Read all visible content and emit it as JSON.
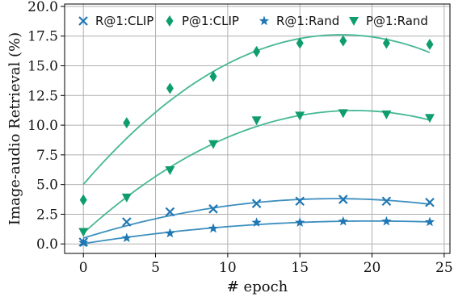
{
  "chart_data": {
    "type": "scatter",
    "xlabel": "# epoch",
    "ylabel": "Image-audio Retrieval (%)",
    "xlim": [
      -1.3,
      25.4
    ],
    "ylim": [
      -0.8,
      20.2
    ],
    "xticks": [
      0,
      5,
      10,
      15,
      20,
      25
    ],
    "xtick_labels": [
      "0",
      "5",
      "10",
      "15",
      "20",
      "25"
    ],
    "yticks": [
      0.0,
      2.5,
      5.0,
      7.5,
      10.0,
      12.5,
      15.0,
      17.5,
      20.0
    ],
    "ytick_labels": [
      "0.0",
      "2.5",
      "5.0",
      "7.5",
      "10.0",
      "12.5",
      "15.0",
      "17.5",
      "20.0"
    ],
    "grid": true,
    "legend_position": "top",
    "series": [
      {
        "name": "R@1:CLIP",
        "marker": "x",
        "color": "#1f77b4",
        "fit_color": "#3d8fbf",
        "x": [
          0,
          3,
          6,
          9,
          12,
          15,
          18,
          21,
          24
        ],
        "values": [
          0.15,
          1.85,
          2.7,
          2.95,
          3.4,
          3.6,
          3.75,
          3.6,
          3.5
        ]
      },
      {
        "name": "P@1:CLIP",
        "marker": "diamond",
        "color": "#0f9d6e",
        "fit_color": "#45b795",
        "x": [
          0,
          3,
          6,
          9,
          12,
          15,
          18,
          21,
          24
        ],
        "values": [
          3.7,
          10.2,
          13.1,
          14.1,
          16.2,
          16.9,
          17.1,
          16.9,
          16.8
        ]
      },
      {
        "name": "R@1:Rand",
        "marker": "star",
        "color": "#1f77b4",
        "fit_color": "#3d8fbf",
        "x": [
          0,
          3,
          6,
          9,
          12,
          15,
          18,
          21,
          24
        ],
        "values": [
          0.1,
          0.5,
          0.9,
          1.3,
          1.8,
          1.8,
          1.9,
          1.9,
          1.85
        ]
      },
      {
        "name": "P@1:Rand",
        "marker": "triangle-down",
        "color": "#0f9d6e",
        "fit_color": "#45b795",
        "x": [
          0,
          3,
          6,
          9,
          12,
          15,
          18,
          21,
          24
        ],
        "values": [
          1.0,
          3.9,
          6.2,
          8.4,
          10.4,
          10.8,
          11.0,
          10.9,
          10.6
        ]
      }
    ]
  }
}
